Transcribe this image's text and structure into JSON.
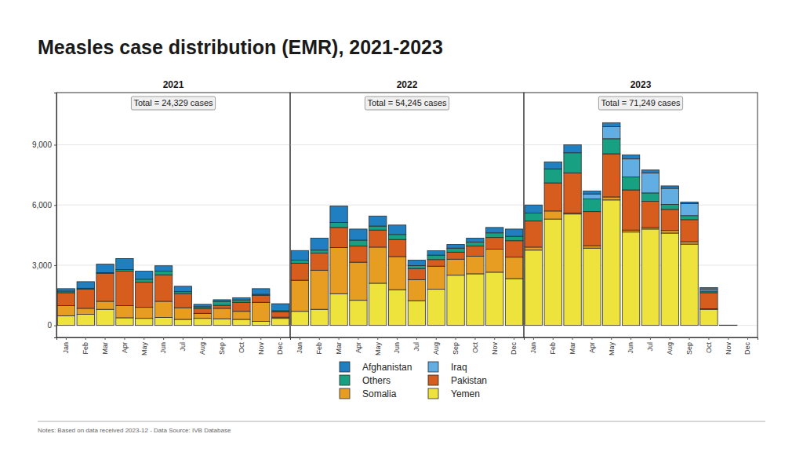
{
  "title": "Measles case distribution (EMR), 2021-2023",
  "note": "Notes: Based on data received 2023-12 - Data Source: IVB Database",
  "chart_data": [
    {
      "type": "bar",
      "stacked": true,
      "grid": true,
      "title": "2021",
      "annotation": "Total = 24,329 cases",
      "categories": [
        "Jan",
        "Feb",
        "Mar",
        "Apr",
        "May",
        "Jun",
        "Jul",
        "Aug",
        "Sep",
        "Oct",
        "Nov",
        "Dec"
      ],
      "ylim": [
        -600,
        11600
      ],
      "yticks": [
        0,
        {
          "value": 3000,
          "label": "3,000"
        },
        {
          "value": 6000,
          "label": "6,000"
        },
        {
          "value": 9000,
          "label": "9,000"
        }
      ],
      "series": [
        {
          "name": "Yemen",
          "color": "#eee33c",
          "values": [
            480,
            550,
            800,
            380,
            350,
            400,
            300,
            350,
            330,
            300,
            200,
            350
          ]
        },
        {
          "name": "Somalia",
          "color": "#e69d22",
          "values": [
            500,
            300,
            400,
            600,
            550,
            800,
            580,
            250,
            520,
            400,
            950,
            60
          ]
        },
        {
          "name": "Pakistan",
          "color": "#d75d1f",
          "values": [
            650,
            950,
            1400,
            1720,
            1250,
            1320,
            700,
            250,
            150,
            450,
            350,
            270
          ]
        },
        {
          "name": "Others",
          "color": "#17a081",
          "values": [
            80,
            50,
            30,
            80,
            150,
            180,
            100,
            80,
            200,
            120,
            50,
            50
          ]
        },
        {
          "name": "Iraq",
          "color": "#62aee3",
          "values": [
            0,
            0,
            0,
            0,
            0,
            0,
            0,
            0,
            0,
            0,
            0,
            0
          ]
        },
        {
          "name": "Afghanistan",
          "color": "#1f7fc0",
          "values": [
            120,
            330,
            420,
            550,
            400,
            270,
            270,
            120,
            80,
            110,
            280,
            350
          ]
        }
      ]
    },
    {
      "type": "bar",
      "stacked": true,
      "grid": true,
      "title": "2022",
      "annotation": "Total = 54,245 cases",
      "tick_labels": "x",
      "categories": [
        "Jan",
        "Feb",
        "Mar",
        "Apr",
        "May",
        "Jun",
        "Jul",
        "Aug",
        "Sep",
        "Oct",
        "Nov",
        "Dec"
      ],
      "ylim": [
        -600,
        11600
      ],
      "yticks": [
        0,
        {
          "value": 3000,
          "label": "3,000"
        },
        {
          "value": 6000,
          "label": "6,000"
        },
        {
          "value": 9000,
          "label": "9,000"
        }
      ],
      "series": [
        {
          "name": "Yemen",
          "color": "#eee33c",
          "values": [
            700,
            800,
            1580,
            1250,
            2100,
            1780,
            1230,
            1800,
            2500,
            2570,
            2650,
            2330
          ]
        },
        {
          "name": "Somalia",
          "color": "#e69d22",
          "values": [
            1550,
            1950,
            2300,
            1900,
            1800,
            1650,
            1050,
            1150,
            800,
            880,
            1150,
            1070
          ]
        },
        {
          "name": "Pakistan",
          "color": "#d75d1f",
          "values": [
            850,
            850,
            1000,
            800,
            850,
            850,
            550,
            330,
            350,
            500,
            580,
            820
          ]
        },
        {
          "name": "Others",
          "color": "#17a081",
          "values": [
            150,
            150,
            250,
            300,
            200,
            250,
            150,
            220,
            200,
            200,
            230,
            220
          ]
        },
        {
          "name": "Iraq",
          "color": "#62aee3",
          "values": [
            0,
            0,
            0,
            0,
            0,
            0,
            0,
            0,
            0,
            0,
            0,
            0
          ]
        },
        {
          "name": "Afghanistan",
          "color": "#1f7fc0",
          "values": [
            480,
            600,
            820,
            550,
            500,
            470,
            270,
            220,
            180,
            200,
            270,
            360
          ]
        }
      ]
    },
    {
      "type": "bar",
      "stacked": true,
      "grid": true,
      "title": "2023",
      "annotation": "Total = 71,249 cases",
      "tick_labels": "x",
      "categories": [
        "Jan",
        "Feb",
        "Mar",
        "Apr",
        "May",
        "Jun",
        "Jul",
        "Aug",
        "Sep",
        "Oct",
        "Nov",
        "Dec"
      ],
      "ylim": [
        -600,
        11600
      ],
      "yticks": [
        0,
        {
          "value": 3000,
          "label": "3,000"
        },
        {
          "value": 6000,
          "label": "6,000"
        },
        {
          "value": 9000,
          "label": "9,000"
        }
      ],
      "series": [
        {
          "name": "Yemen",
          "color": "#eee33c",
          "values": [
            3750,
            5300,
            5550,
            3850,
            6250,
            4650,
            4800,
            4600,
            4050,
            800,
            0,
            0
          ]
        },
        {
          "name": "Somalia",
          "color": "#e69d22",
          "values": [
            150,
            400,
            50,
            120,
            150,
            100,
            80,
            130,
            120,
            30,
            0,
            0
          ]
        },
        {
          "name": "Pakistan",
          "color": "#d75d1f",
          "values": [
            1300,
            1400,
            2000,
            1700,
            2150,
            2000,
            1300,
            1050,
            1100,
            800,
            15,
            0
          ]
        },
        {
          "name": "Others",
          "color": "#17a081",
          "values": [
            400,
            700,
            1000,
            630,
            750,
            650,
            420,
            250,
            200,
            80,
            0,
            0
          ]
        },
        {
          "name": "Iraq",
          "color": "#62aee3",
          "values": [
            0,
            0,
            0,
            250,
            600,
            900,
            1000,
            800,
            600,
            100,
            0,
            0
          ]
        },
        {
          "name": "Afghanistan",
          "color": "#1f7fc0",
          "values": [
            400,
            350,
            400,
            150,
            200,
            200,
            150,
            120,
            80,
            70,
            0,
            0
          ]
        }
      ]
    }
  ]
}
